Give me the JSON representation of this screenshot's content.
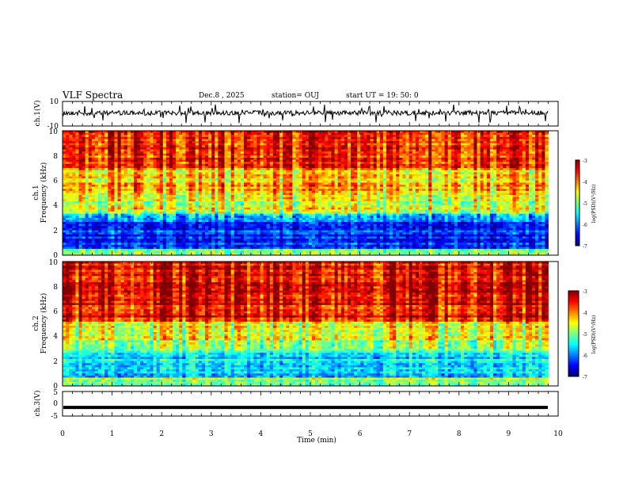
{
  "header": {
    "title": "VLF Spectra",
    "date": "Dec.8 , 2025",
    "station": "station= OUJ",
    "start": "start  UT =   19: 50: 0"
  },
  "chart_data": [
    {
      "type": "line",
      "panel": "ch1-waveform",
      "ylabel": "ch.1(V)",
      "ylim": [
        -10,
        10
      ],
      "yticks": [
        "10",
        "-10"
      ],
      "xlim": [
        0,
        10
      ],
      "trace_color": "#000000"
    },
    {
      "type": "heatmap",
      "panel": "ch1-spectrogram",
      "ylabel": "ch.1\nFrequency (kHz)",
      "ylim": [
        0,
        10
      ],
      "yticks": [
        "0",
        "2",
        "4",
        "6",
        "8",
        "10"
      ],
      "xlim": [
        0,
        9.8
      ],
      "colorbar": {
        "label": "log(PSD)(V²/Hz)",
        "range": [
          -7,
          -3
        ],
        "ticks": [
          "-3",
          "-4",
          "-5",
          "-6",
          "-7"
        ]
      },
      "bands": [
        {
          "f0": 0,
          "f1": 0.5,
          "level": -5.0
        },
        {
          "f0": 0.5,
          "f1": 2.6,
          "level": -6.3
        },
        {
          "f0": 2.6,
          "f1": 3.4,
          "level": -5.7
        },
        {
          "f0": 3.4,
          "f1": 5.0,
          "level": -4.6
        },
        {
          "f0": 5.0,
          "f1": 7.0,
          "level": -4.2
        },
        {
          "f0": 7.0,
          "f1": 10,
          "level": -3.6
        }
      ]
    },
    {
      "type": "heatmap",
      "panel": "ch2-spectrogram",
      "ylabel": "ch.2\nFrequency (kHz)",
      "ylim": [
        0,
        10
      ],
      "yticks": [
        "0",
        "2",
        "4",
        "6",
        "8",
        "10"
      ],
      "xlim": [
        0,
        9.8
      ],
      "colorbar": {
        "label": "log(PSD)(V²/Hz)",
        "range": [
          -7,
          -3
        ],
        "ticks": [
          "-3",
          "-4",
          "-5",
          "-6",
          "-7"
        ]
      },
      "bands": [
        {
          "f0": 0,
          "f1": 0.6,
          "level": -4.9
        },
        {
          "f0": 0.6,
          "f1": 2.6,
          "level": -5.6
        },
        {
          "f0": 2.6,
          "f1": 3.6,
          "level": -5.0
        },
        {
          "f0": 3.6,
          "f1": 5.2,
          "level": -4.4
        },
        {
          "f0": 5.2,
          "f1": 10,
          "level": -3.4
        }
      ]
    },
    {
      "type": "line",
      "panel": "ch3-waveform",
      "ylabel": "ch.3(V)",
      "ylim": [
        -5,
        5
      ],
      "yticks": [
        "5",
        "0",
        "-5"
      ],
      "xlim": [
        0,
        10
      ],
      "value": -1.5
    }
  ],
  "xaxis": {
    "label": "Time (min)",
    "ticks": [
      "0",
      "1",
      "2",
      "3",
      "4",
      "5",
      "6",
      "7",
      "8",
      "9",
      "10"
    ]
  },
  "colors": {
    "jet": [
      "#00007f",
      "#0000ff",
      "#007fff",
      "#00ffff",
      "#7fff7f",
      "#ffff00",
      "#ff7f00",
      "#ff0000",
      "#7f0000"
    ]
  }
}
